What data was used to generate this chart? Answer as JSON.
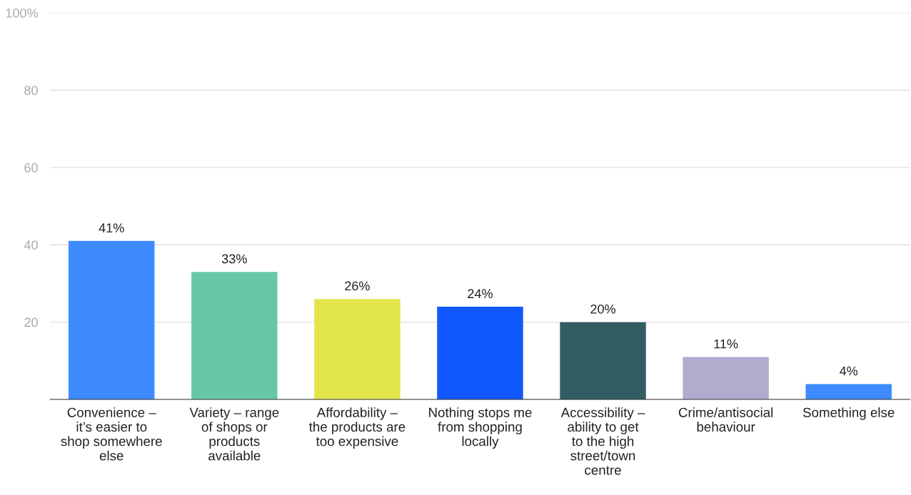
{
  "chart_data": {
    "type": "bar",
    "categories": [
      "Convenience – it’s easier to shop somewhere else",
      "Variety – range of shops or products available",
      "Affordability – the products are too expensive",
      "Nothing stops me from shopping locally",
      "Accessibility – ability to get to the high street/town centre",
      "Crime/antisocial behaviour",
      "Something else"
    ],
    "values": [
      41,
      33,
      26,
      24,
      20,
      11,
      4
    ],
    "colors": [
      "#3d8bff",
      "#67c8a6",
      "#e3e64a",
      "#1258ff",
      "#315c62",
      "#b1acce",
      "#3d8bff"
    ],
    "value_labels": [
      "41%",
      "33%",
      "26%",
      "24%",
      "20%",
      "11%",
      "4%"
    ],
    "ylim": [
      0,
      100
    ],
    "yticks": [
      {
        "value": 0,
        "label": null
      },
      20,
      40,
      60,
      80,
      {
        "value": 100,
        "label": "100%"
      }
    ],
    "grid": "y"
  }
}
